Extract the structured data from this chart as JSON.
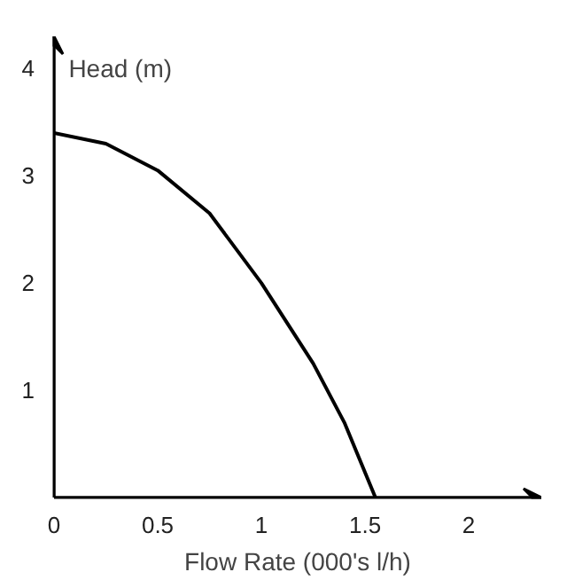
{
  "chart_data": {
    "type": "line",
    "xlabel": "Flow Rate (000's l/h)",
    "ylabel": "Head (m)",
    "x": [
      0,
      0.25,
      0.5,
      0.75,
      1,
      1.25,
      1.4,
      1.55
    ],
    "series": [
      {
        "color": "#000000",
        "values": [
          3.4,
          3.3,
          3.05,
          2.65,
          2.0,
          1.25,
          0.7,
          0
        ]
      }
    ],
    "xlim": [
      0,
      2.35
    ],
    "ylim": [
      0,
      4.3
    ],
    "xticks": [
      0,
      0.5,
      1,
      1.5,
      2
    ],
    "yticks": [
      1,
      2,
      3,
      4
    ],
    "grid": false,
    "marker": "none",
    "line_style": "solid"
  }
}
